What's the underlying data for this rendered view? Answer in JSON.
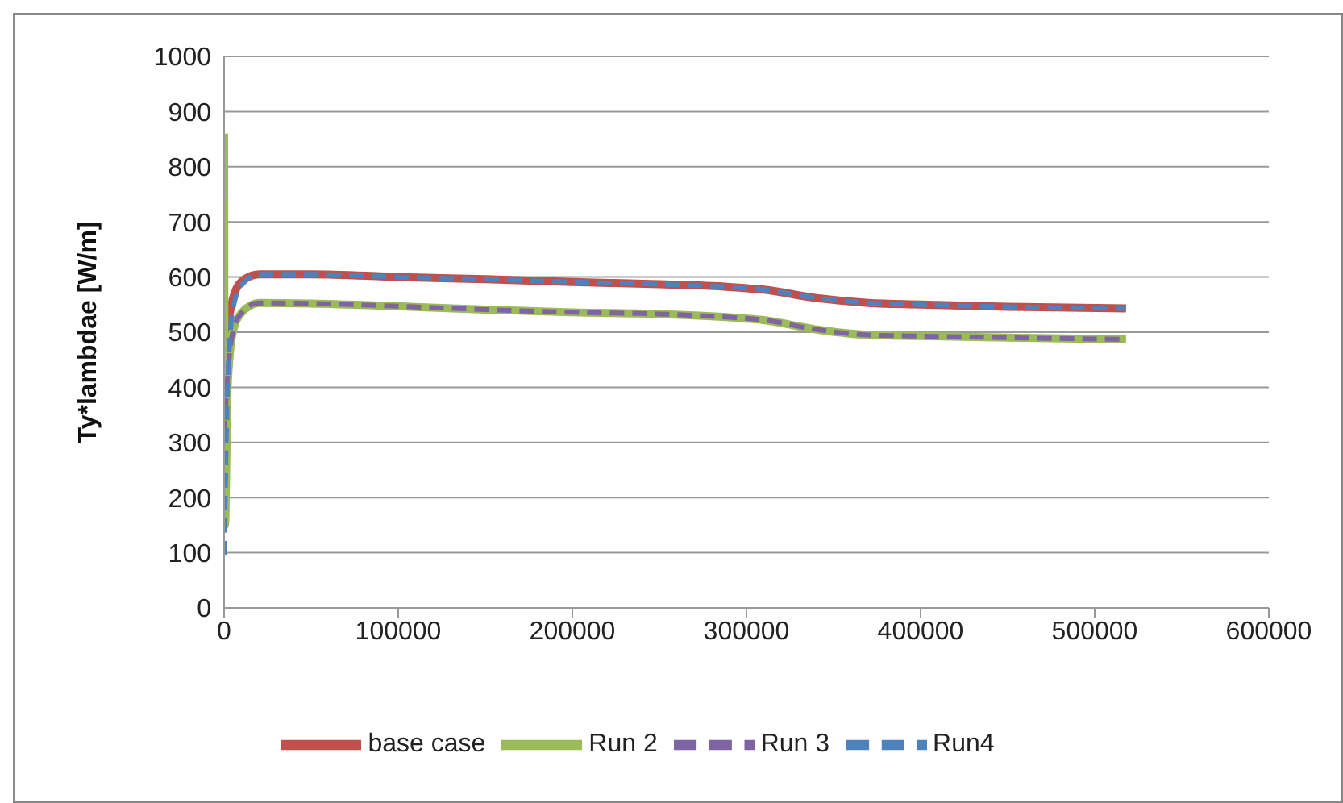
{
  "chart_data": {
    "type": "line",
    "ylabel": "Ty*lambdae [W/m]",
    "xlim": [
      0,
      600000
    ],
    "xticks": [
      0,
      100000,
      200000,
      300000,
      400000,
      500000,
      600000
    ],
    "ylim": [
      0,
      1000
    ],
    "yticks": [
      0,
      100,
      200,
      300,
      400,
      500,
      600,
      700,
      800,
      900,
      1000
    ],
    "grid": "y",
    "legend": "bottom",
    "marker": "none",
    "series": [
      {
        "name": "base case",
        "color": "#c0504d",
        "line_style": "solid",
        "x": [
          0,
          2000,
          5000,
          10000,
          20000,
          50000,
          100000,
          150000,
          200000,
          250000,
          290000,
          310000,
          340000,
          370000,
          400000,
          450000,
          518000
        ],
        "values": [
          380,
          500,
          560,
          592,
          605,
          605,
          600,
          596,
          591,
          587,
          582,
          577,
          562,
          553,
          550,
          546,
          543
        ]
      },
      {
        "name": "Run 2",
        "color": "#9bbb59",
        "line_style": "solid",
        "x": [
          0,
          500,
          2000,
          5000,
          10000,
          20000,
          50000,
          100000,
          150000,
          200000,
          250000,
          290000,
          310000,
          340000,
          370000,
          400000,
          450000,
          518000
        ],
        "values": [
          860,
          150,
          400,
          500,
          535,
          553,
          552,
          547,
          541,
          536,
          533,
          527,
          522,
          505,
          495,
          493,
          490,
          487
        ]
      },
      {
        "name": "Run 3",
        "color": "#8064a2",
        "line_style": "dashed",
        "x": [
          0,
          2000,
          5000,
          10000,
          20000,
          50000,
          100000,
          150000,
          200000,
          250000,
          290000,
          310000,
          340000,
          370000,
          400000,
          450000,
          518000
        ],
        "values": [
          313,
          420,
          500,
          535,
          553,
          552,
          547,
          541,
          536,
          533,
          527,
          522,
          505,
          495,
          493,
          490,
          487
        ]
      },
      {
        "name": "Run4",
        "color": "#4f81bd",
        "line_style": "dashed",
        "x": [
          0,
          2000,
          5000,
          10000,
          20000,
          50000,
          100000,
          150000,
          200000,
          250000,
          290000,
          310000,
          340000,
          370000,
          400000,
          450000,
          518000
        ],
        "values": [
          95,
          400,
          540,
          585,
          605,
          605,
          600,
          596,
          591,
          587,
          582,
          577,
          562,
          553,
          550,
          546,
          543
        ]
      }
    ]
  }
}
